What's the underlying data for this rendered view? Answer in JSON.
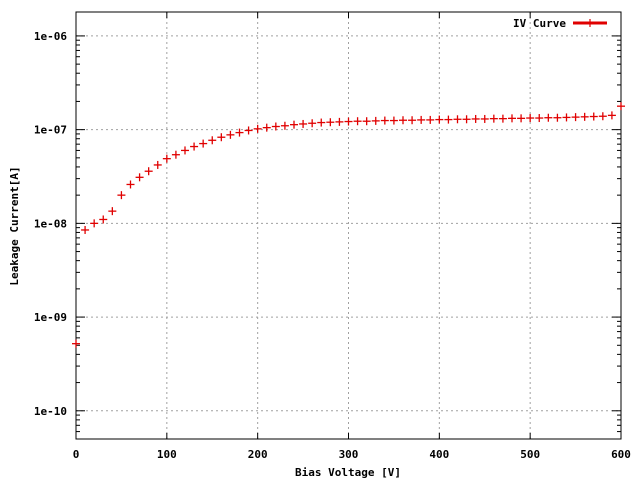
{
  "chart_data": {
    "type": "scatter",
    "xlabel": "Bias Voltage [V]",
    "ylabel": "Leakage Current[A]",
    "xlim": [
      0,
      600
    ],
    "ylim": [
      5e-11,
      1.8e-06
    ],
    "y_scale": "log",
    "grid": true,
    "legend_position": "top-right",
    "x_ticks": [
      {
        "value": 0,
        "label": "0"
      },
      {
        "value": 100,
        "label": "100"
      },
      {
        "value": 200,
        "label": "200"
      },
      {
        "value": 300,
        "label": "300"
      },
      {
        "value": 400,
        "label": "400"
      },
      {
        "value": 500,
        "label": "500"
      },
      {
        "value": 600,
        "label": "600"
      }
    ],
    "y_ticks": [
      {
        "value": 1e-10,
        "label": "1e-10"
      },
      {
        "value": 1e-09,
        "label": "1e-09"
      },
      {
        "value": 1e-08,
        "label": "1e-08"
      },
      {
        "value": 1e-07,
        "label": "1e-07"
      },
      {
        "value": 1e-06,
        "label": "1e-06"
      }
    ],
    "series": [
      {
        "name": "IV Curve",
        "color": "#e00000",
        "marker": "plus",
        "x": [
          0,
          10,
          20,
          30,
          40,
          50,
          60,
          70,
          80,
          90,
          100,
          110,
          120,
          130,
          140,
          150,
          160,
          170,
          180,
          190,
          200,
          210,
          220,
          230,
          240,
          250,
          260,
          270,
          280,
          290,
          300,
          310,
          320,
          330,
          340,
          350,
          360,
          370,
          380,
          390,
          400,
          410,
          420,
          430,
          440,
          450,
          460,
          470,
          480,
          490,
          500,
          510,
          520,
          530,
          540,
          550,
          560,
          570,
          580,
          590,
          600
        ],
        "y": [
          5.2e-10,
          8.5e-09,
          1e-08,
          1.1e-08,
          1.35e-08,
          2e-08,
          2.6e-08,
          3.1e-08,
          3.6e-08,
          4.2e-08,
          4.9e-08,
          5.4e-08,
          6e-08,
          6.6e-08,
          7.1e-08,
          7.7e-08,
          8.3e-08,
          8.8e-08,
          9.3e-08,
          9.8e-08,
          1.02e-07,
          1.05e-07,
          1.08e-07,
          1.1e-07,
          1.13e-07,
          1.15e-07,
          1.17e-07,
          1.19e-07,
          1.2e-07,
          1.21e-07,
          1.22e-07,
          1.23e-07,
          1.23e-07,
          1.24e-07,
          1.25e-07,
          1.25e-07,
          1.26e-07,
          1.26e-07,
          1.27e-07,
          1.27e-07,
          1.28e-07,
          1.28e-07,
          1.29e-07,
          1.29e-07,
          1.3e-07,
          1.3e-07,
          1.31e-07,
          1.31e-07,
          1.32e-07,
          1.32e-07,
          1.33e-07,
          1.33e-07,
          1.34e-07,
          1.34e-07,
          1.35e-07,
          1.36e-07,
          1.37e-07,
          1.38e-07,
          1.39e-07,
          1.42e-07,
          1.78e-07
        ]
      }
    ]
  }
}
